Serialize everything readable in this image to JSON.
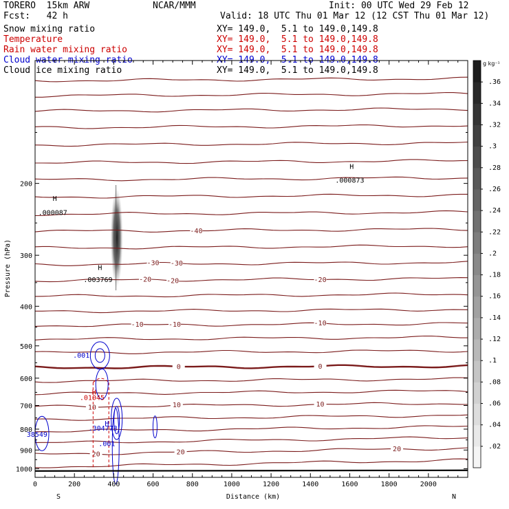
{
  "header": {
    "model": "TORERO  15km ARW",
    "center": "NCAR/MMM",
    "init": "Init: 00 UTC Wed 29 Feb 12",
    "fcst": "Fcst:   42 h",
    "valid": "Valid: 18 UTC Thu 01 Mar 12 (12 CST Thu 01 Mar 12)"
  },
  "fields": [
    {
      "name": "Snow mixing ratio",
      "xy": "XY= 149.0,  5.1 to 149.0,149.8",
      "color": "#000000"
    },
    {
      "name": "Temperature",
      "xy": "XY= 149.0,  5.1 to 149.0,149.8",
      "color": "#cc0000"
    },
    {
      "name": "Rain water mixing ratio",
      "xy": "XY= 149.0,  5.1 to 149.0,149.8",
      "color": "#cc0000"
    },
    {
      "name": "Cloud water mixing ratio",
      "xy": "XY= 149.0,  5.1 to 149.0,149.8",
      "color": "#0000cc"
    },
    {
      "name": "Cloud ice mixing ratio",
      "xy": "XY= 149.0,  5.1 to 149.0,149.8",
      "color": "#000000"
    }
  ],
  "colors": {
    "temperature": "#7a1a1a",
    "rain": "#cc0000",
    "cloud_water": "#0000cc",
    "snow": "#000000"
  },
  "chart_data": {
    "type": "cross-section contour",
    "xlabel": "Distance (km)",
    "ylabel": "Pressure (hPa)",
    "xlim": [
      0,
      2200
    ],
    "ylim": [
      1050,
      100
    ],
    "y_scale": "log",
    "x_ticks": [
      0,
      200,
      400,
      600,
      800,
      1000,
      1200,
      1400,
      1600,
      1800,
      2000
    ],
    "y_ticks": [
      200,
      300,
      400,
      500,
      600,
      700,
      800,
      900,
      1000
    ],
    "x_end_labels": {
      "left": "S",
      "right": "N"
    },
    "temperature_contours": [
      {
        "p_at_start": 112,
        "label": ""
      },
      {
        "p_at_start": 122,
        "label": ""
      },
      {
        "p_at_start": 133,
        "label": ""
      },
      {
        "p_at_start": 146,
        "label": ""
      },
      {
        "p_at_start": 161,
        "label": ""
      },
      {
        "p_at_start": 178,
        "label": ""
      },
      {
        "p_at_start": 196,
        "label": ""
      },
      {
        "p_at_start": 216,
        "label": ""
      },
      {
        "p_at_start": 238,
        "label": ""
      },
      {
        "p_at_start": 262,
        "label": "-40",
        "label_x": [
          820
        ]
      },
      {
        "p_at_start": 288,
        "label": ""
      },
      {
        "p_at_start": 316,
        "label": "-30",
        "label_x": [
          600,
          720
        ]
      },
      {
        "p_at_start": 346,
        "label": "-20",
        "label_x": [
          560,
          700,
          1450
        ]
      },
      {
        "p_at_start": 378,
        "label": ""
      },
      {
        "p_at_start": 412,
        "label": ""
      },
      {
        "p_at_start": 446,
        "label": "-10",
        "label_x": [
          520,
          710,
          1450
        ]
      },
      {
        "p_at_start": 482,
        "label": ""
      },
      {
        "p_at_start": 520,
        "label": ""
      },
      {
        "p_at_start": 565,
        "label": "0",
        "label_x": [
          730,
          1450
        ],
        "bold": true
      },
      {
        "p_at_start": 610,
        "label": ""
      },
      {
        "p_at_start": 655,
        "label": ""
      },
      {
        "p_at_start": 705,
        "label": "10",
        "label_x": [
          290,
          720,
          1450
        ]
      },
      {
        "p_at_start": 757,
        "label": ""
      },
      {
        "p_at_start": 810,
        "label": ""
      },
      {
        "p_at_start": 865,
        "label": ""
      },
      {
        "p_at_start": 922,
        "label": "20",
        "label_x": [
          310,
          740,
          1840
        ]
      },
      {
        "p_at_start": 990,
        "label": ""
      }
    ],
    "surface_pressure": 1013,
    "annotations": [
      {
        "text": "H",
        "x": 100,
        "p": 218,
        "color": "#000000"
      },
      {
        "text": ".000087",
        "x": 90,
        "p": 236,
        "color": "#000000"
      },
      {
        "text": "H",
        "x": 330,
        "p": 322,
        "color": "#000000"
      },
      {
        "text": ".003769",
        "x": 320,
        "p": 345,
        "color": "#000000"
      },
      {
        "text": "H",
        "x": 1610,
        "p": 182,
        "color": "#000000"
      },
      {
        "text": ".000873",
        "x": 1600,
        "p": 197,
        "color": "#000000"
      },
      {
        "text": ".001",
        "x": 235,
        "p": 528,
        "color": "#0000cc"
      },
      {
        "text": "H",
        "x": 300,
        "p": 650,
        "color": "#cc0000"
      },
      {
        "text": ".01045",
        "x": 290,
        "p": 671,
        "color": "#cc0000"
      },
      {
        "text": "H",
        "x": 365,
        "p": 776,
        "color": "#0000cc"
      },
      {
        "text": ".304773",
        "x": 345,
        "p": 797,
        "color": "#0000cc"
      },
      {
        "text": "38549",
        "x": 10,
        "p": 826,
        "color": "#0000cc"
      },
      {
        "text": ".001",
        "x": 365,
        "p": 870,
        "color": "#0000cc"
      }
    ],
    "snow_max": {
      "x": 415,
      "p_top": 205,
      "p_bottom": 360,
      "value": 0.003769
    },
    "rain_dashed": {
      "x": [
        295,
        375
      ],
      "p_top": 615,
      "p_bottom": 1000
    },
    "colorbar": {
      "unit": "g kg⁻¹",
      "ticks": [
        ".02",
        ".04",
        ".06",
        ".08",
        ".1",
        ".12",
        ".14",
        ".16",
        ".18",
        ".2",
        ".22",
        ".24",
        ".26",
        ".28",
        ".3",
        ".32",
        ".34",
        ".36"
      ],
      "max": 0.38
    }
  }
}
